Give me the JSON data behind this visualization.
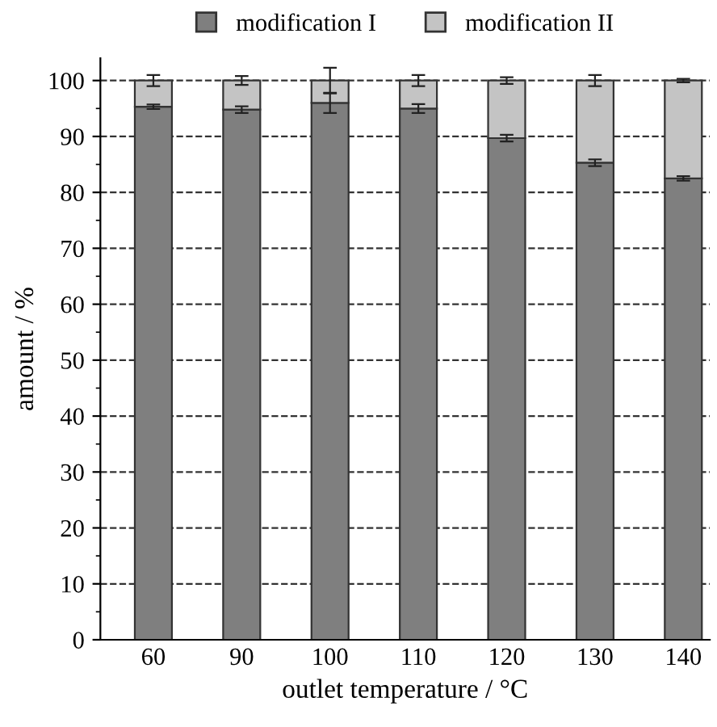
{
  "chart_data": {
    "type": "bar",
    "stacked": true,
    "xlabel": "outlet temperature / °C",
    "ylabel": "amount / %",
    "categories": [
      "60",
      "90",
      "100",
      "110",
      "120",
      "130",
      "140"
    ],
    "series": [
      {
        "name": "modification I",
        "color": "#7f7f7f",
        "values": [
          95.3,
          94.8,
          96.0,
          95.0,
          89.7,
          85.3,
          82.5
        ],
        "errors": [
          0.4,
          0.6,
          1.8,
          0.8,
          0.6,
          0.6,
          0.4
        ]
      },
      {
        "name": "modification II",
        "color": "#c4c4c4",
        "values": [
          4.7,
          5.2,
          4.0,
          5.0,
          10.3,
          14.7,
          17.5
        ],
        "errors": [
          1.0,
          0.8,
          2.3,
          1.0,
          0.6,
          1.0,
          0.3
        ]
      }
    ],
    "ylim": [
      0,
      104
    ],
    "yticks": [
      0,
      10,
      20,
      30,
      40,
      50,
      60,
      70,
      80,
      90,
      100
    ],
    "grid": "y",
    "legend": "top"
  }
}
